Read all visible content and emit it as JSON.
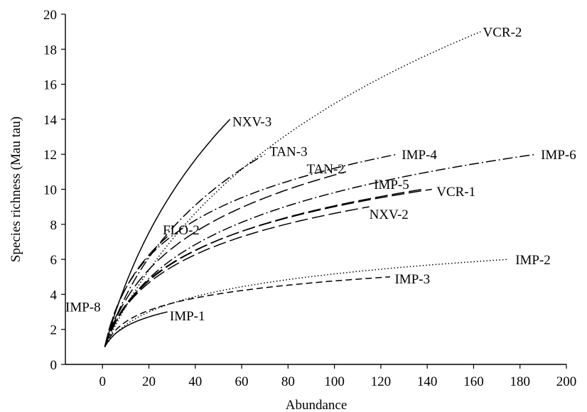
{
  "chart_data": {
    "type": "line",
    "xlabel": "Abundance",
    "ylabel": "Species richness (Mau tau)",
    "xlim": [
      -16,
      200
    ],
    "ylim": [
      0,
      20
    ],
    "xticks": [
      0,
      20,
      40,
      60,
      80,
      100,
      120,
      140,
      160,
      180,
      200
    ],
    "yticks": [
      0,
      2,
      4,
      6,
      8,
      10,
      12,
      14,
      16,
      18,
      20
    ],
    "grid": false,
    "series": [
      {
        "name": "VCR-2",
        "dash": "dot",
        "n": 163,
        "s": 19,
        "k": 38.4
      },
      {
        "name": "NXV-3",
        "dash": "solid",
        "n": 55,
        "s": 14,
        "k": 22.2
      },
      {
        "name": "TAN-3",
        "dash": "dashdot",
        "n": 70,
        "s": 12,
        "k": 16.9
      },
      {
        "name": "TAN-2",
        "dash": "longdash",
        "n": 105,
        "s": 11,
        "k": 9.6
      },
      {
        "name": "IMP-4",
        "dash": "dashdot",
        "n": 127,
        "s": 12,
        "k": 5.6
      },
      {
        "name": "IMP-6",
        "dash": "dashdot",
        "n": 187,
        "s": 12,
        "k": 10.3
      },
      {
        "name": "IMP-5",
        "dash": "longdash",
        "n": 138,
        "s": 10,
        "k": 8.0
      },
      {
        "name": "VCR-1",
        "dash": "longdash",
        "n": 142,
        "s": 10,
        "k": 7.3
      },
      {
        "name": "NXV-2",
        "dash": "longdash",
        "n": 115,
        "s": 9,
        "k": 7.2
      },
      {
        "name": "FLO-2",
        "dash": "longdash",
        "n": 28,
        "s": 7.3,
        "k": 6.5
      },
      {
        "name": "IMP-2",
        "dash": "dot",
        "n": 175,
        "s": 6,
        "k": 7.3
      },
      {
        "name": "IMP-3",
        "dash": "dash",
        "n": 124,
        "s": 5,
        "k": 3.4
      },
      {
        "name": "IMP-1",
        "dash": "solid",
        "n": 28,
        "s": 3,
        "k": 3.8
      },
      {
        "name": "IMP-8",
        "dash": "dash",
        "n": 8,
        "s": 3.2,
        "k": 3.5
      }
    ],
    "labels": [
      {
        "text": "VCR-2",
        "x": 164,
        "y": 19.0
      },
      {
        "text": "NXV-3",
        "x": 56,
        "y": 13.9
      },
      {
        "text": "TAN-3",
        "x": 72,
        "y": 12.2
      },
      {
        "text": "TAN-2",
        "x": 88,
        "y": 11.2
      },
      {
        "text": "IMP-4",
        "x": 129,
        "y": 12.0
      },
      {
        "text": "IMP-6",
        "x": 189,
        "y": 12.0
      },
      {
        "text": "IMP-5",
        "x": 117,
        "y": 10.3
      },
      {
        "text": "VCR-1",
        "x": 144,
        "y": 9.9
      },
      {
        "text": "NXV-2",
        "x": 115,
        "y": 8.6
      },
      {
        "text": "FLO-2",
        "x": 26,
        "y": 7.7
      },
      {
        "text": "IMP-2",
        "x": 178,
        "y": 6.0
      },
      {
        "text": "IMP-3",
        "x": 126,
        "y": 4.9
      },
      {
        "text": "IMP-1",
        "x": 29,
        "y": 2.8
      },
      {
        "text": "IMP-8",
        "x": -16,
        "y": 3.3
      }
    ]
  }
}
